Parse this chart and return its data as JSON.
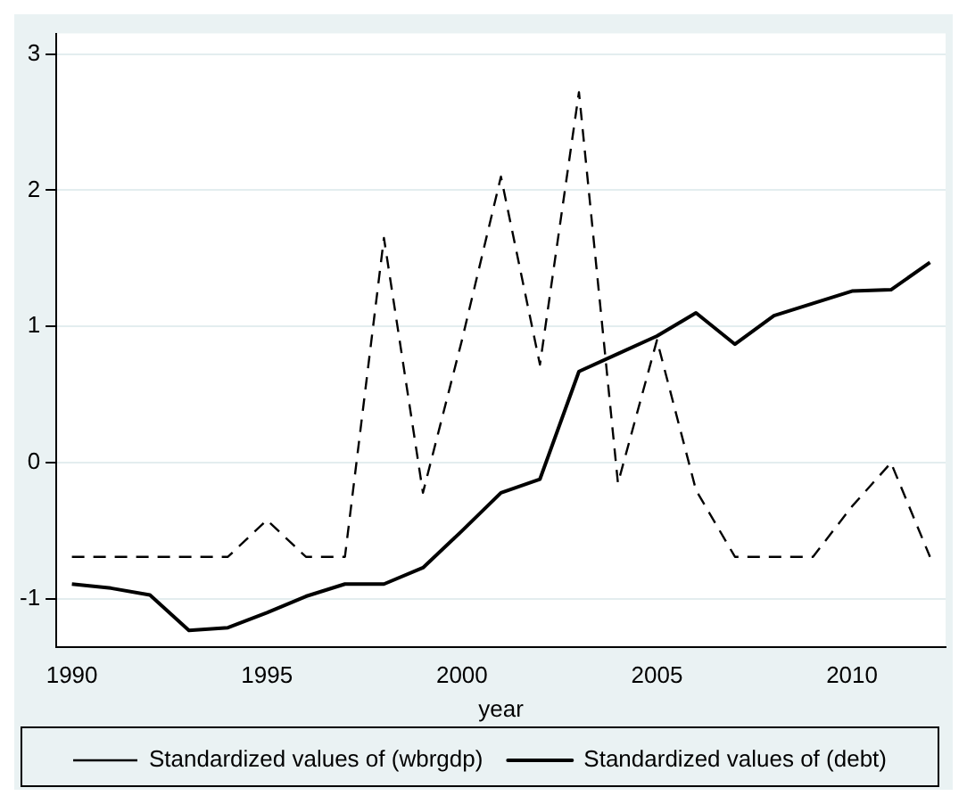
{
  "chart_data": {
    "type": "line",
    "xlabel": "year",
    "x": [
      1990,
      1991,
      1992,
      1993,
      1994,
      1995,
      1996,
      1997,
      1998,
      1999,
      2000,
      2001,
      2002,
      2003,
      2004,
      2005,
      2006,
      2007,
      2008,
      2009,
      2010,
      2011,
      2012
    ],
    "series": [
      {
        "name": "Standardized values of (wbrgdp)",
        "color": "#000000",
        "line_style": "dashed",
        "values": [
          -0.69,
          -0.69,
          -0.69,
          -0.69,
          -0.69,
          -0.42,
          -0.69,
          -0.69,
          1.65,
          -0.22,
          0.9,
          2.1,
          0.72,
          2.72,
          -0.15,
          0.9,
          -0.2,
          -0.69,
          -0.69,
          -0.69,
          -0.32,
          0.0,
          -0.69
        ]
      },
      {
        "name": "Standardized values of (debt)",
        "color": "#000000",
        "line_style": "solid",
        "values": [
          -0.89,
          -0.92,
          -0.97,
          -1.23,
          -1.21,
          -1.1,
          -0.98,
          -0.89,
          -0.89,
          -0.77,
          -0.5,
          -0.22,
          -0.12,
          0.67,
          0.8,
          0.93,
          1.1,
          0.87,
          1.08,
          1.17,
          1.26,
          1.27,
          1.47
        ]
      }
    ],
    "xlim": [
      1989.6,
      2012.4
    ],
    "xticks": [
      1990,
      1995,
      2000,
      2005,
      2010
    ],
    "ylim": [
      -1.35,
      3.15
    ],
    "yticks": [
      -1,
      0,
      1,
      2,
      3
    ],
    "grid": "y",
    "legend": "bottom",
    "marker": "none"
  }
}
